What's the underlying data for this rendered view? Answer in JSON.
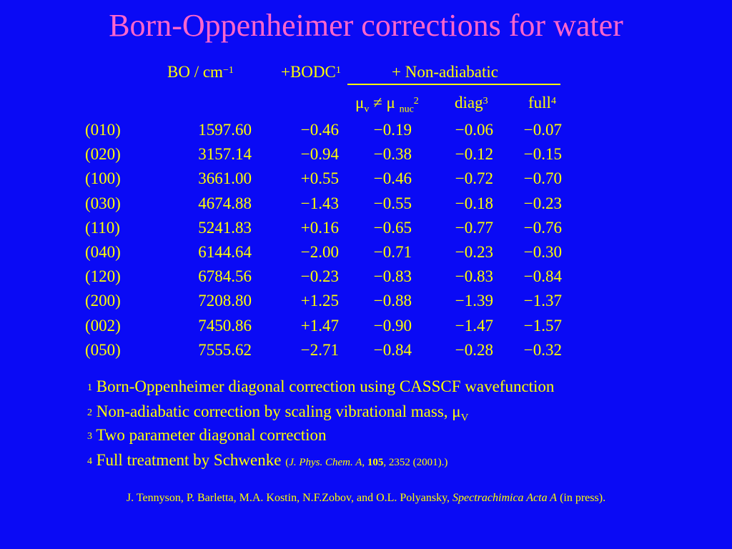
{
  "title": "Born-Oppenheimer corrections for water",
  "header": {
    "bo": "BO / cm",
    "bo_sup": "−1",
    "bodc": "+BODC",
    "bodc_sup": "1",
    "nonadiabatic": "+ Non-adiabatic",
    "mu_v": "μ",
    "mu_v_sub": "v",
    "neq": "≠",
    "mu_nuc": "μ",
    "mu_nuc_sub": "nuc",
    "mu_sup": "2",
    "diag": "diag",
    "diag_sup": "3",
    "full": "full",
    "full_sup": "4"
  },
  "rows": [
    {
      "mode": "(010)",
      "bo": "1597.60",
      "bodc": "−0.46",
      "mu": "−0.19",
      "diag": "−0.06",
      "full": "−0.07"
    },
    {
      "mode": "(020)",
      "bo": "3157.14",
      "bodc": "−0.94",
      "mu": "−0.38",
      "diag": "−0.12",
      "full": "−0.15"
    },
    {
      "mode": "(100)",
      "bo": "3661.00",
      "bodc": "+0.55",
      "mu": "−0.46",
      "diag": "−0.72",
      "full": "−0.70"
    },
    {
      "mode": "(030)",
      "bo": "4674.88",
      "bodc": "−1.43",
      "mu": "−0.55",
      "diag": "−0.18",
      "full": "−0.23"
    },
    {
      "mode": "(110)",
      "bo": "5241.83",
      "bodc": "+0.16",
      "mu": "−0.65",
      "diag": "−0.77",
      "full": "−0.76"
    },
    {
      "mode": "(040)",
      "bo": "6144.64",
      "bodc": "−2.00",
      "mu": "−0.71",
      "diag": "−0.23",
      "full": "−0.30"
    },
    {
      "mode": "(120)",
      "bo": "6784.56",
      "bodc": "−0.23",
      "mu": "−0.83",
      "diag": "−0.83",
      "full": "−0.84"
    },
    {
      "mode": "(200)",
      "bo": "7208.80",
      "bodc": "+1.25",
      "mu": "−0.88",
      "diag": "−1.39",
      "full": "−1.37"
    },
    {
      "mode": "(002)",
      "bo": "7450.86",
      "bodc": "+1.47",
      "mu": "−0.90",
      "diag": "−1.47",
      "full": "−1.57"
    },
    {
      "mode": "(050)",
      "bo": "7555.62",
      "bodc": "−2.71",
      "mu": "−0.84",
      "diag": "−0.28",
      "full": "−0.32"
    }
  ],
  "footnotes": {
    "fn1_num": "1",
    "fn1_text": " Born-Oppenheimer diagonal correction using CASSCF wavefunction",
    "fn2_num": "2",
    "fn2_text": " Non-adiabatic correction by scaling vibrational mass, ",
    "fn2_mu": "μ",
    "fn2_sub": "V",
    "fn3_num": "3",
    "fn3_text": " Two parameter diagonal correction",
    "fn4_num": "4",
    "fn4_text": " Full treatment by Schwenke ",
    "fn4_open": "(",
    "fn4_journal": "J. Phys. Chem. A",
    "fn4_sep1": ", ",
    "fn4_vol": "105",
    "fn4_rest": ", 2352 (2001).)"
  },
  "reference": {
    "authors": "J. Tennyson, P. Barletta, M.A. Kostin, N.F.Zobov, and O.L. Polyansky, ",
    "journal": "Spectrachimica Acta A",
    "status": " (in press)."
  }
}
